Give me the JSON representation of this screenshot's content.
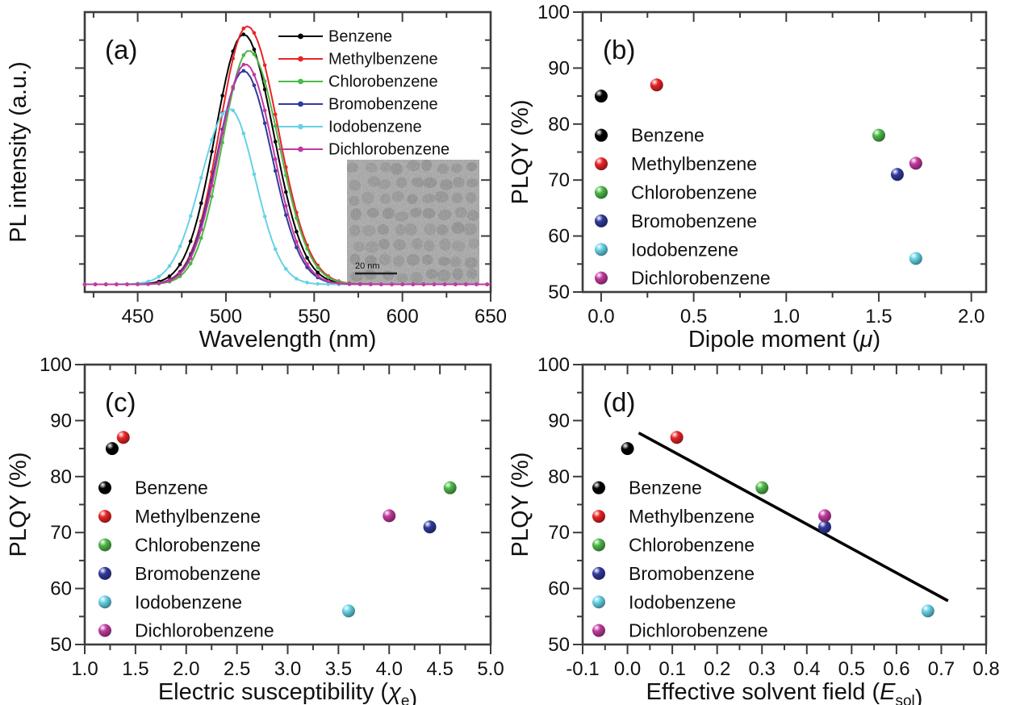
{
  "figure": {
    "background": "#ffffff",
    "frame_color": "#3c3c3c",
    "text_color": "#111111"
  },
  "solvents": [
    {
      "name": "Benzene",
      "color": "#000000"
    },
    {
      "name": "Methylbenzene",
      "color": "#e92427"
    },
    {
      "name": "Chlorobenzene",
      "color": "#4db848"
    },
    {
      "name": "Bromobenzene",
      "color": "#303a9e"
    },
    {
      "name": "Iodobenzene",
      "color": "#66d2e6"
    },
    {
      "name": "Dichlorobenzene",
      "color": "#c13a9f"
    }
  ],
  "chart_data": [
    {
      "id": "a",
      "type": "line",
      "panel_label": "(a)",
      "xlabel": "Wavelength (nm)",
      "xlabel_parts": [
        {
          "t": "Wavelength (nm)",
          "s": "n"
        }
      ],
      "ylabel": "PL intensity (a.u.)",
      "xlim": [
        420,
        650
      ],
      "xtick_values": [
        450,
        500,
        550,
        600,
        650
      ],
      "xtick_labels": [
        "450",
        "500",
        "550",
        "600",
        "650"
      ],
      "ylim": [
        0,
        1
      ],
      "y_axis_unlabeled": true,
      "baseline": 0.012,
      "legend_entries": [
        "Benzene",
        "Methylbenzene",
        "Chlorobenzene",
        "Bromobenzene",
        "Iodobenzene",
        "Dichlorobenzene"
      ],
      "series": [
        {
          "name": "Benzene",
          "color": "#000000",
          "peak_nm": 510,
          "rel_height": 0.925,
          "sigma_left": 16.0,
          "sigma_right": 17.0
        },
        {
          "name": "Methylbenzene",
          "color": "#e92427",
          "peak_nm": 512,
          "rel_height": 0.955,
          "sigma_left": 15.5,
          "sigma_right": 17.5
        },
        {
          "name": "Chlorobenzene",
          "color": "#4db848",
          "peak_nm": 513,
          "rel_height": 0.865,
          "sigma_left": 15.0,
          "sigma_right": 17.0
        },
        {
          "name": "Bromobenzene",
          "color": "#303a9e",
          "peak_nm": 510,
          "rel_height": 0.79,
          "sigma_left": 15.0,
          "sigma_right": 16.0
        },
        {
          "name": "Iodobenzene",
          "color": "#66d2e6",
          "peak_nm": 502,
          "rel_height": 0.65,
          "sigma_left": 16.0,
          "sigma_right": 14.5
        },
        {
          "name": "Dichlorobenzene",
          "color": "#c13a9f",
          "peak_nm": 511,
          "rel_height": 0.815,
          "sigma_left": 15.0,
          "sigma_right": 16.0
        }
      ],
      "inset": {
        "description": "TEM image of nanocrystals",
        "scale_bar_label": "20 nm"
      }
    },
    {
      "id": "b",
      "type": "scatter",
      "panel_label": "(b)",
      "xlabel": "Dipole moment (μ)",
      "xlabel_parts": [
        {
          "t": "Dipole moment (",
          "s": "n"
        },
        {
          "t": "μ",
          "s": "i"
        },
        {
          "t": ")",
          "s": "n"
        }
      ],
      "ylabel": "PLQY (%)",
      "xlim": [
        -0.1,
        2.08
      ],
      "xtick_values": [
        0.0,
        0.5,
        1.0,
        1.5,
        2.0
      ],
      "xtick_labels": [
        "0.0",
        "0.5",
        "1.0",
        "1.5",
        "2.0"
      ],
      "ylim": [
        50,
        100
      ],
      "ytick_values": [
        50,
        60,
        70,
        80,
        90,
        100
      ],
      "ytick_labels": [
        "50",
        "60",
        "70",
        "80",
        "90",
        "100"
      ],
      "points": [
        {
          "name": "Benzene",
          "x": 0.0,
          "y": 85
        },
        {
          "name": "Methylbenzene",
          "x": 0.3,
          "y": 87
        },
        {
          "name": "Chlorobenzene",
          "x": 1.5,
          "y": 78
        },
        {
          "name": "Bromobenzene",
          "x": 1.6,
          "y": 71
        },
        {
          "name": "Iodobenzene",
          "x": 1.7,
          "y": 56
        },
        {
          "name": "Dichlorobenzene",
          "x": 1.7,
          "y": 73
        }
      ]
    },
    {
      "id": "c",
      "type": "scatter",
      "panel_label": "(c)",
      "xlabel": "Electric susceptibility (χe)",
      "xlabel_parts": [
        {
          "t": "Electric susceptibility (",
          "s": "n"
        },
        {
          "t": "χ",
          "s": "i"
        },
        {
          "t": "e",
          "s": "sub"
        },
        {
          "t": ")",
          "s": "n"
        }
      ],
      "ylabel": "PLQY (%)",
      "xlim": [
        1.0,
        5.0
      ],
      "xtick_values": [
        1.0,
        1.5,
        2.0,
        2.5,
        3.0,
        3.5,
        4.0,
        4.5,
        5.0
      ],
      "xtick_labels": [
        "1.0",
        "1.5",
        "2.0",
        "2.5",
        "3.0",
        "3.5",
        "4.0",
        "4.5",
        "5.0"
      ],
      "ylim": [
        50,
        100
      ],
      "ytick_values": [
        50,
        60,
        70,
        80,
        90,
        100
      ],
      "ytick_labels": [
        "50",
        "60",
        "70",
        "80",
        "90",
        "100"
      ],
      "points": [
        {
          "name": "Benzene",
          "x": 1.27,
          "y": 85
        },
        {
          "name": "Methylbenzene",
          "x": 1.38,
          "y": 87
        },
        {
          "name": "Chlorobenzene",
          "x": 4.6,
          "y": 78
        },
        {
          "name": "Bromobenzene",
          "x": 4.4,
          "y": 71
        },
        {
          "name": "Iodobenzene",
          "x": 3.6,
          "y": 56
        },
        {
          "name": "Dichlorobenzene",
          "x": 4.0,
          "y": 73
        }
      ]
    },
    {
      "id": "d",
      "type": "scatter",
      "panel_label": "(d)",
      "xlabel": "Effective solvent field (Esol)",
      "xlabel_parts": [
        {
          "t": "Effective solvent field (",
          "s": "n"
        },
        {
          "t": "E",
          "s": "i"
        },
        {
          "t": "sol",
          "s": "sub"
        },
        {
          "t": ")",
          "s": "n"
        }
      ],
      "ylabel": "PLQY (%)",
      "xlim": [
        -0.1,
        0.8
      ],
      "xtick_values": [
        -0.1,
        0.0,
        0.1,
        0.2,
        0.3,
        0.4,
        0.5,
        0.6,
        0.7,
        0.8
      ],
      "xtick_labels": [
        "-0.1",
        "0.0",
        "0.1",
        "0.2",
        "0.3",
        "0.4",
        "0.5",
        "0.6",
        "0.7",
        "0.8"
      ],
      "ylim": [
        50,
        100
      ],
      "ytick_values": [
        50,
        60,
        70,
        80,
        90,
        100
      ],
      "ytick_labels": [
        "50",
        "60",
        "70",
        "80",
        "90",
        "100"
      ],
      "points": [
        {
          "name": "Benzene",
          "x": 0.0,
          "y": 85
        },
        {
          "name": "Methylbenzene",
          "x": 0.11,
          "y": 87
        },
        {
          "name": "Chlorobenzene",
          "x": 0.3,
          "y": 78
        },
        {
          "name": "Bromobenzene",
          "x": 0.44,
          "y": 71
        },
        {
          "name": "Iodobenzene",
          "x": 0.67,
          "y": 56
        },
        {
          "name": "Dichlorobenzene",
          "x": 0.44,
          "y": 73
        }
      ],
      "fit_line": {
        "x_start": 0.025,
        "y_start": 87.8,
        "x_end": 0.715,
        "y_end": 57.8,
        "color": "#000000"
      }
    }
  ]
}
